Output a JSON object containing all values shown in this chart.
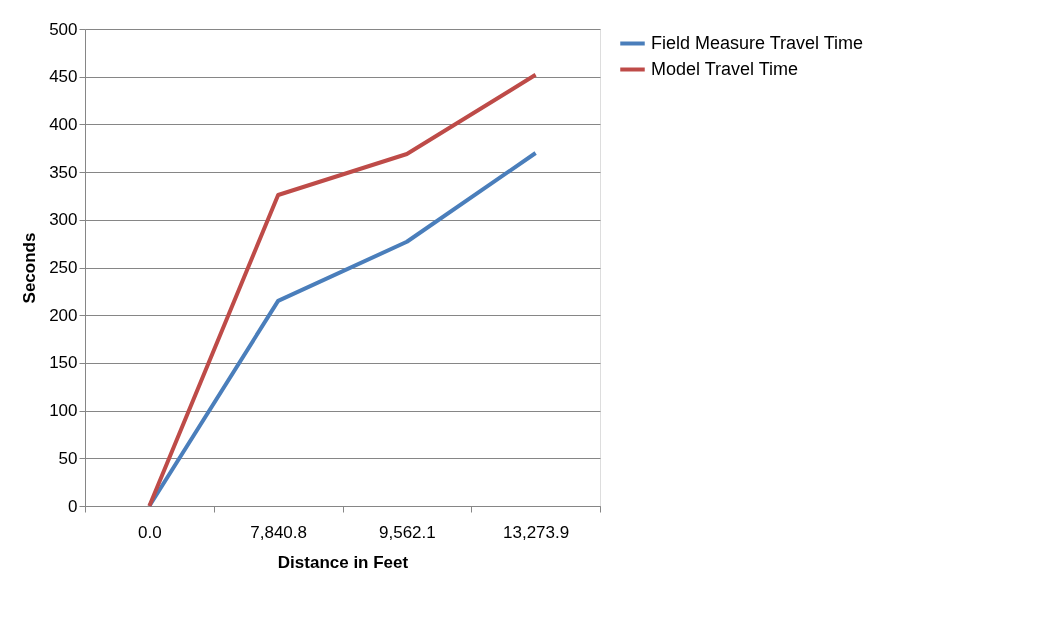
{
  "chart_data": {
    "type": "line",
    "xlabel": "Distance in Feet",
    "ylabel": "Seconds",
    "categories": [
      "0.0",
      "7,840.8",
      "9,562.1",
      "13,273.9"
    ],
    "series": [
      {
        "name": "Field Measure Travel Time",
        "color": "#4a7ebb",
        "values": [
          0,
          215,
          277,
          370
        ]
      },
      {
        "name": "Model Travel Time",
        "color": "#be4b48",
        "values": [
          0,
          326,
          369,
          452
        ]
      }
    ],
    "ylim": [
      0,
      500
    ],
    "yticks": [
      0,
      50,
      100,
      150,
      200,
      250,
      300,
      350,
      400,
      450,
      500
    ],
    "grid": "y",
    "legend": "right",
    "marker": "none",
    "line_style": "solid"
  }
}
